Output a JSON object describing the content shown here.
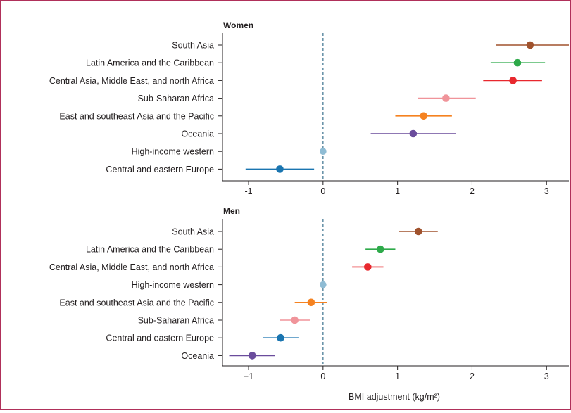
{
  "chart_data": [
    {
      "type": "scatter",
      "subtype": "forest-plot",
      "title": "Women",
      "xlim": [
        -1.35,
        3.3
      ],
      "xticks": [
        "-1",
        "0",
        "1",
        "2",
        "3"
      ],
      "reference_line": 0,
      "rows": [
        {
          "label": "South Asia",
          "value": 2.78,
          "lo": 2.32,
          "hi": 3.3,
          "color": "#a0522d"
        },
        {
          "label": "Latin America and the Caribbean",
          "value": 2.61,
          "lo": 2.25,
          "hi": 2.98,
          "color": "#2eaa4a"
        },
        {
          "label": "Central Asia, Middle East, and north Africa",
          "value": 2.55,
          "lo": 2.15,
          "hi": 2.94,
          "color": "#e8282e"
        },
        {
          "label": "Sub-Saharan Africa",
          "value": 1.65,
          "lo": 1.27,
          "hi": 2.05,
          "color": "#f0949a"
        },
        {
          "label": "East and southeast Asia and the Pacific",
          "value": 1.35,
          "lo": 0.97,
          "hi": 1.73,
          "color": "#f58220"
        },
        {
          "label": "Oceania",
          "value": 1.21,
          "lo": 0.64,
          "hi": 1.78,
          "color": "#6a4c9c"
        },
        {
          "label": "High-income western",
          "value": 0,
          "lo": 0,
          "hi": 0,
          "color": "#8fbcd4"
        },
        {
          "label": "Central and eastern Europe",
          "value": -0.58,
          "lo": -1.04,
          "hi": -0.12,
          "color": "#1a75b0"
        }
      ]
    },
    {
      "type": "scatter",
      "subtype": "forest-plot",
      "title": "Men",
      "xlabel": "BMI adjustment (kg/m²)",
      "xlim": [
        -1.35,
        3.3
      ],
      "xticks": [
        "−1",
        "0",
        "1",
        "2",
        "3"
      ],
      "reference_line": 0,
      "rows": [
        {
          "label": "South Asia",
          "value": 1.28,
          "lo": 1.02,
          "hi": 1.54,
          "color": "#a0522d"
        },
        {
          "label": "Latin America and the Caribbean",
          "value": 0.77,
          "lo": 0.57,
          "hi": 0.97,
          "color": "#2eaa4a"
        },
        {
          "label": "Central Asia, Middle East, and north Africa",
          "value": 0.6,
          "lo": 0.39,
          "hi": 0.81,
          "color": "#e8282e"
        },
        {
          "label": "High-income western",
          "value": 0,
          "lo": 0,
          "hi": 0,
          "color": "#8fbcd4"
        },
        {
          "label": "East and southeast Asia and the Pacific",
          "value": -0.16,
          "lo": -0.38,
          "hi": 0.05,
          "color": "#f58220"
        },
        {
          "label": "Sub-Saharan Africa",
          "value": -0.38,
          "lo": -0.58,
          "hi": -0.17,
          "color": "#f0949a"
        },
        {
          "label": "Central and eastern Europe",
          "value": -0.57,
          "lo": -0.81,
          "hi": -0.33,
          "color": "#1a75b0"
        },
        {
          "label": "Oceania",
          "value": -0.95,
          "lo": -1.26,
          "hi": -0.65,
          "color": "#6a4c9c"
        }
      ]
    }
  ]
}
